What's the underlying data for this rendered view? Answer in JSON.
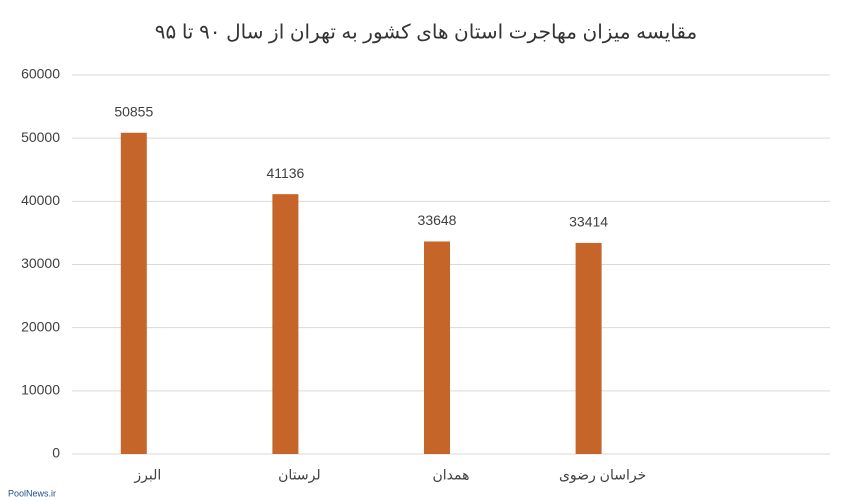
{
  "chart_data": {
    "type": "bar",
    "title": "مقایسه میزان مهاجرت استان های کشور به تهران از سال ۹۰ تا ۹۵",
    "categories": [
      "البرز",
      "لرستان",
      "همدان",
      "خراسان رضوی",
      null
    ],
    "values": [
      50855,
      41136,
      33648,
      33414,
      null
    ],
    "color": "#c5652a",
    "ylim": [
      0,
      60000
    ],
    "yticks": [
      0,
      10000,
      20000,
      30000,
      40000,
      50000,
      60000
    ],
    "grid": true,
    "watermark": "PoolNews.ir"
  }
}
